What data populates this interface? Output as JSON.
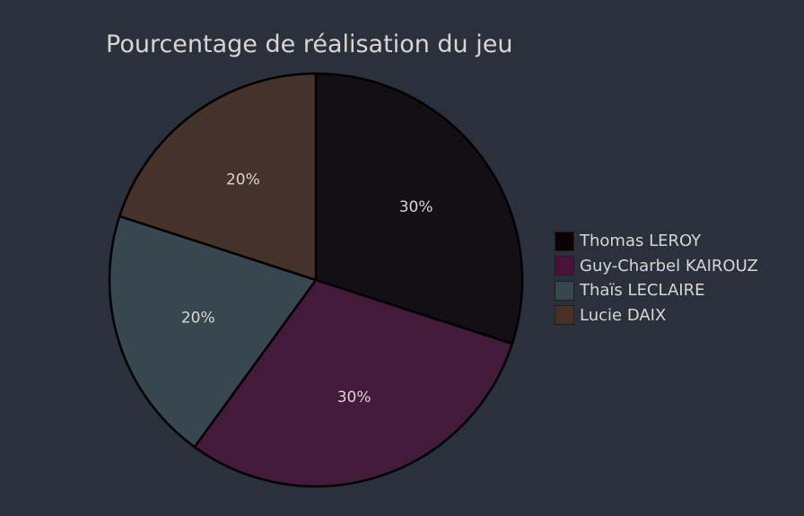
{
  "chart_data": {
    "type": "pie",
    "title": "Pourcentage de réalisation du jeu",
    "categories": [
      "Thomas LEROY",
      "Guy-Charbel KAIROUZ",
      "Thaïs LECLAIRE",
      "Lucie DAIX"
    ],
    "values": [
      30,
      30,
      20,
      20
    ],
    "labels": [
      "30%",
      "30%",
      "20%",
      "20%"
    ],
    "colors": [
      "#130f13",
      "#441a3a",
      "#38464f",
      "#45322a"
    ],
    "legend_colors": [
      "#0a0203",
      "#4a1239",
      "#34484e",
      "#4a2f25"
    ],
    "start_angle": "12 o'clock",
    "direction": "clockwise",
    "legend_position": "right"
  },
  "colors": {
    "background": "#2b303d",
    "text": "#d9d6d1",
    "label_text": "#d9d6d1",
    "slice_border": "#000000"
  }
}
